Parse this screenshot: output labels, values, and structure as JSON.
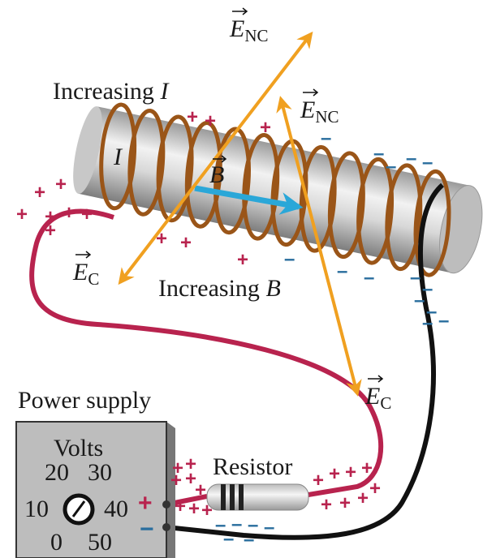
{
  "labels": {
    "e_nc_1": {
      "symbol": "E",
      "subscript": "NC"
    },
    "e_nc_2": {
      "symbol": "E",
      "subscript": "NC"
    },
    "e_c_1": {
      "symbol": "E",
      "subscript": "C"
    },
    "e_c_2": {
      "symbol": "E",
      "subscript": "C"
    },
    "increasing_i": {
      "text": "Increasing",
      "variable": "I"
    },
    "increasing_b": {
      "text": "Increasing",
      "variable": "B"
    },
    "current": "I",
    "field": "B",
    "power_supply": "Power supply",
    "volts": "Volts",
    "dial": [
      "20",
      "30",
      "10",
      "40",
      "0",
      "50"
    ],
    "resistor": "Resistor",
    "terminal_plus": "+",
    "terminal_minus": "−"
  },
  "charges": {
    "plus": "+",
    "minus": "–"
  }
}
